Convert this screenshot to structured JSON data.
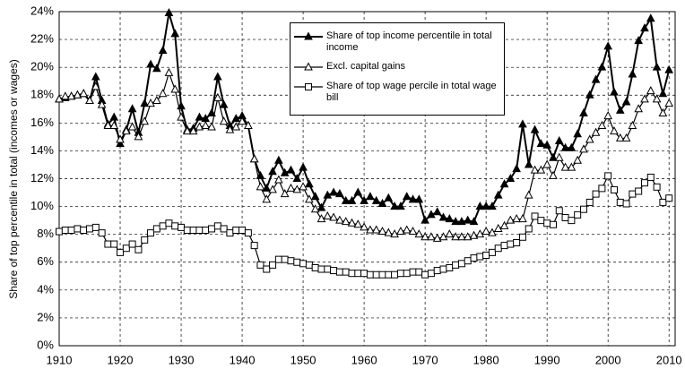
{
  "chart_data": {
    "type": "line",
    "y_label": "Share of top percentile in total (incomes or wages)",
    "x": [
      1910,
      1911,
      1912,
      1913,
      1914,
      1915,
      1916,
      1917,
      1918,
      1919,
      1920,
      1921,
      1922,
      1923,
      1924,
      1925,
      1926,
      1927,
      1928,
      1929,
      1930,
      1931,
      1932,
      1933,
      1934,
      1935,
      1936,
      1937,
      1938,
      1939,
      1940,
      1941,
      1942,
      1943,
      1944,
      1945,
      1946,
      1947,
      1948,
      1949,
      1950,
      1951,
      1952,
      1953,
      1954,
      1955,
      1956,
      1957,
      1958,
      1959,
      1960,
      1961,
      1962,
      1963,
      1964,
      1965,
      1966,
      1967,
      1968,
      1969,
      1970,
      1971,
      1972,
      1973,
      1974,
      1975,
      1976,
      1977,
      1978,
      1979,
      1980,
      1981,
      1982,
      1983,
      1984,
      1985,
      1986,
      1987,
      1988,
      1989,
      1990,
      1991,
      1992,
      1993,
      1994,
      1995,
      1996,
      1997,
      1998,
      1999,
      2000,
      2001,
      2002,
      2003,
      2004,
      2005,
      2006,
      2007,
      2008,
      2009,
      2010
    ],
    "series": [
      {
        "name": "Share of top income percentile in total income",
        "color": "#000000",
        "marker": "filled-triangle",
        "values": [
          17.7,
          17.8,
          17.9,
          18.0,
          18.1,
          17.6,
          19.3,
          17.6,
          15.9,
          16.4,
          14.5,
          15.5,
          17.0,
          15.3,
          17.4,
          20.2,
          19.9,
          21.2,
          23.9,
          22.4,
          17.2,
          15.5,
          15.6,
          16.4,
          16.3,
          16.7,
          19.3,
          17.3,
          15.8,
          16.3,
          16.5,
          15.8,
          13.4,
          12.2,
          11.3,
          12.5,
          13.3,
          12.4,
          12.6,
          12.0,
          12.8,
          11.6,
          10.7,
          9.9,
          10.8,
          11.0,
          10.9,
          10.4,
          10.4,
          11.0,
          10.4,
          10.7,
          10.4,
          10.2,
          10.6,
          10.0,
          10.0,
          10.7,
          10.5,
          10.5,
          9.0,
          9.4,
          9.6,
          9.2,
          9.1,
          8.9,
          8.9,
          9.0,
          8.9,
          10.0,
          10.0,
          10.0,
          10.8,
          11.6,
          12.0,
          12.7,
          15.9,
          13.0,
          15.5,
          14.5,
          14.4,
          13.5,
          14.7,
          14.2,
          14.2,
          15.2,
          16.7,
          18.0,
          19.1,
          20.0,
          21.5,
          18.2,
          16.9,
          17.5,
          19.5,
          21.9,
          22.8,
          23.5,
          20.0,
          18.1,
          19.8
        ]
      },
      {
        "name": "Excl. capital gains",
        "color": "#000000",
        "marker": "open-triangle",
        "values": [
          17.7,
          17.9,
          17.9,
          18.0,
          18.1,
          17.6,
          18.6,
          17.3,
          15.8,
          15.8,
          14.8,
          15.4,
          15.7,
          15.0,
          16.1,
          17.4,
          17.6,
          18.1,
          19.6,
          18.4,
          16.4,
          15.4,
          15.4,
          15.7,
          15.8,
          15.7,
          17.8,
          16.1,
          15.5,
          15.7,
          16.1,
          15.8,
          13.4,
          11.4,
          10.5,
          11.2,
          11.9,
          10.9,
          11.3,
          11.2,
          11.4,
          10.5,
          9.8,
          9.1,
          9.3,
          9.2,
          9.0,
          8.9,
          8.8,
          8.7,
          8.5,
          8.3,
          8.3,
          8.2,
          8.1,
          8.0,
          8.2,
          8.3,
          8.2,
          8.0,
          7.8,
          7.8,
          7.7,
          7.8,
          8.0,
          7.8,
          7.8,
          7.8,
          7.9,
          8.0,
          8.2,
          8.1,
          8.4,
          8.6,
          9.0,
          9.1,
          9.1,
          10.8,
          12.6,
          12.6,
          13.0,
          12.2,
          13.5,
          12.8,
          12.8,
          13.3,
          14.1,
          14.8,
          15.3,
          15.8,
          16.5,
          15.4,
          14.9,
          14.9,
          15.8,
          17.0,
          17.7,
          18.3,
          17.7,
          16.7,
          17.4
        ]
      },
      {
        "name": "Share of top wage percile in total wage bill",
        "color": "#000000",
        "marker": "open-square",
        "values": [
          8.2,
          8.3,
          8.3,
          8.4,
          8.3,
          8.4,
          8.5,
          8.1,
          7.3,
          7.3,
          6.7,
          7.0,
          7.3,
          6.9,
          7.6,
          8.1,
          8.4,
          8.6,
          8.8,
          8.6,
          8.5,
          8.3,
          8.3,
          8.3,
          8.3,
          8.4,
          8.6,
          8.4,
          8.1,
          8.3,
          8.3,
          8.1,
          7.2,
          5.8,
          5.5,
          5.8,
          6.2,
          6.2,
          6.1,
          6.0,
          5.9,
          5.8,
          5.6,
          5.5,
          5.5,
          5.4,
          5.3,
          5.3,
          5.2,
          5.2,
          5.2,
          5.1,
          5.1,
          5.1,
          5.1,
          5.1,
          5.2,
          5.2,
          5.3,
          5.3,
          5.1,
          5.2,
          5.4,
          5.5,
          5.6,
          5.8,
          5.9,
          6.1,
          6.3,
          6.4,
          6.5,
          6.7,
          7.0,
          7.2,
          7.3,
          7.4,
          7.8,
          8.4,
          9.3,
          9.0,
          8.8,
          8.7,
          9.7,
          9.2,
          9.0,
          9.4,
          9.8,
          10.3,
          10.9,
          11.3,
          12.2,
          11.2,
          10.3,
          10.2,
          10.9,
          11.1,
          11.7,
          12.1,
          11.4,
          10.3,
          10.6
        ]
      }
    ],
    "xlim": [
      1910,
      2011
    ],
    "xticks": [
      1910,
      1920,
      1930,
      1940,
      1950,
      1960,
      1970,
      1980,
      1990,
      2000,
      2010
    ],
    "ylim": [
      0,
      24
    ],
    "yticks": [
      {
        "value": 0,
        "label": "0%"
      },
      {
        "value": 2,
        "label": "2%"
      },
      {
        "value": 4,
        "label": "4%"
      },
      {
        "value": 6,
        "label": "6%"
      },
      {
        "value": 8,
        "label": "8%"
      },
      {
        "value": 10,
        "label": "10%"
      },
      {
        "value": 12,
        "label": "12%"
      },
      {
        "value": 14,
        "label": "14%"
      },
      {
        "value": 16,
        "label": "16%"
      },
      {
        "value": 18,
        "label": "18%"
      },
      {
        "value": 20,
        "label": "20%"
      },
      {
        "value": 22,
        "label": "22%"
      },
      {
        "value": 24,
        "label": "24%"
      }
    ],
    "grid": true,
    "legend": "top-center"
  }
}
